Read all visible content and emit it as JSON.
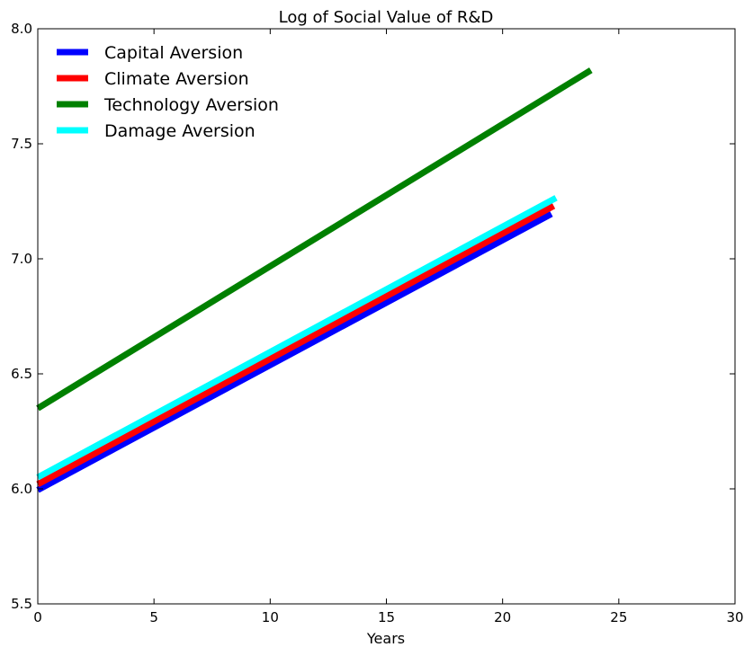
{
  "chart_data": {
    "type": "line",
    "title": "Log of Social Value of R&D",
    "xlabel": "Years",
    "ylabel": "",
    "xlim": [
      0,
      30
    ],
    "ylim": [
      5.5,
      8.0
    ],
    "xticks": [
      0,
      5,
      10,
      15,
      20,
      25,
      30
    ],
    "yticks": [
      5.5,
      6.0,
      6.5,
      7.0,
      7.5,
      8.0
    ],
    "xtick_labels": [
      "0",
      "5",
      "10",
      "15",
      "20",
      "25",
      "30"
    ],
    "ytick_labels": [
      "5.5",
      "6.0",
      "6.5",
      "7.0",
      "7.5",
      "8.0"
    ],
    "grid": false,
    "legend_position": "upper-left",
    "series": [
      {
        "name": "Capital Aversion",
        "color": "#0000ff",
        "x": [
          0,
          22.1
        ],
        "y": [
          5.995,
          7.195
        ]
      },
      {
        "name": "Climate Aversion",
        "color": "#ff0000",
        "x": [
          0,
          22.2
        ],
        "y": [
          6.02,
          7.23
        ]
      },
      {
        "name": "Technology Aversion",
        "color": "#008000",
        "x": [
          0,
          23.8
        ],
        "y": [
          6.35,
          7.82
        ]
      },
      {
        "name": "Damage Aversion",
        "color": "#00ffff",
        "x": [
          0,
          22.3
        ],
        "y": [
          6.05,
          7.265
        ]
      }
    ]
  }
}
